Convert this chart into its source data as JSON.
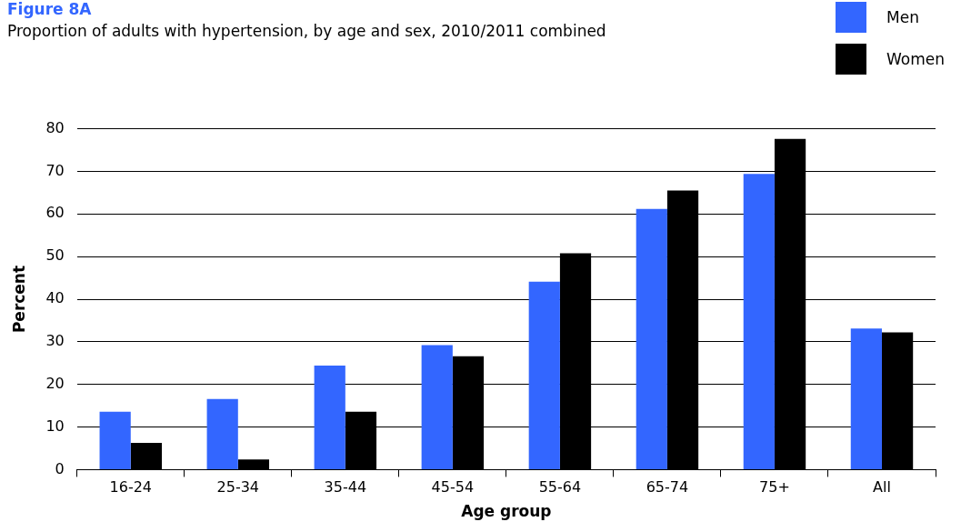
{
  "chart_data": {
    "type": "bar",
    "title": "Figure 8A",
    "subtitle": "Proportion of adults with hypertension, by age and sex, 2010/2011 combined",
    "xlabel": "Age group",
    "ylabel": "Percent",
    "categories": [
      "16-24",
      "25-34",
      "35-44",
      "45-54",
      "55-64",
      "65-74",
      "75+",
      "All"
    ],
    "series": [
      {
        "name": "Men",
        "color": "#3366ff",
        "values": [
          13.6,
          16.6,
          24.4,
          29.2,
          44.1,
          61.2,
          69.4,
          33.1
        ]
      },
      {
        "name": "Women",
        "color": "#000000",
        "values": [
          6.3,
          2.4,
          13.6,
          26.6,
          50.8,
          65.5,
          77.6,
          32.2
        ]
      }
    ],
    "ylim": [
      0,
      80
    ],
    "yticks": [
      0,
      10,
      20,
      30,
      40,
      50,
      60,
      70,
      80
    ],
    "grid": "y",
    "legend": "top right"
  }
}
